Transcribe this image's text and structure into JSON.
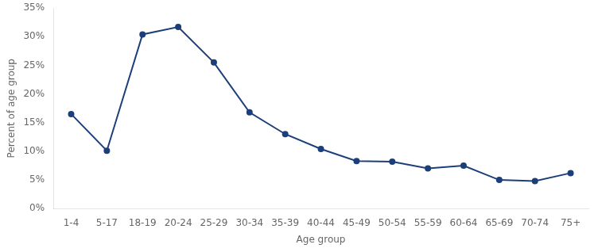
{
  "chart_data": {
    "type": "line",
    "categories": [
      "1-4",
      "5-17",
      "18-19",
      "20-24",
      "25-29",
      "30-34",
      "35-39",
      "40-44",
      "45-49",
      "50-54",
      "55-59",
      "60-64",
      "65-69",
      "70-74",
      "75+"
    ],
    "values": [
      0.165,
      0.101,
      0.304,
      0.317,
      0.255,
      0.168,
      0.13,
      0.104,
      0.083,
      0.082,
      0.07,
      0.075,
      0.05,
      0.048,
      0.062
    ],
    "color": "#1C3F7A",
    "marker": "o",
    "xlabel": "Age group",
    "ylabel": "Percent of age group",
    "ylim": [
      0,
      0.35
    ],
    "yticks": [
      {
        "value": 0,
        "label": "0%"
      },
      {
        "value": 0.05,
        "label": "5%"
      },
      {
        "value": 0.1,
        "label": "10%"
      },
      {
        "value": 0.15,
        "label": "15%"
      },
      {
        "value": 0.2,
        "label": "20%"
      },
      {
        "value": 0.25,
        "label": "25%"
      },
      {
        "value": 0.3,
        "label": "30%"
      },
      {
        "value": 0.35,
        "label": "35%"
      }
    ],
    "grid": false
  }
}
